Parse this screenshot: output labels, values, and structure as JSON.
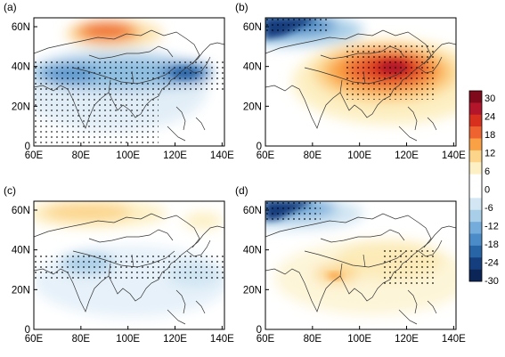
{
  "panels": [
    {
      "label": "(a)",
      "field": "a"
    },
    {
      "label": "(b)",
      "field": "b"
    },
    {
      "label": "(c)",
      "field": "c"
    },
    {
      "label": "(d)",
      "field": "d"
    }
  ],
  "x_ticks": [
    "60E",
    "80E",
    "100E",
    "120E",
    "140E"
  ],
  "y_ticks": [
    "0",
    "20N",
    "40N",
    "60N"
  ],
  "colorbar": {
    "labels": [
      "30",
      "24",
      "18",
      "12",
      "6",
      "0",
      "-6",
      "-12",
      "-18",
      "-24",
      "-30"
    ],
    "colors": [
      "#7f0a1b",
      "#b3152a",
      "#d7301f",
      "#ee6330",
      "#f9a144",
      "#fcd48a",
      "#fdf0c4",
      "#ffffff",
      "#ffffff",
      "#d3e6f3",
      "#a9cfe8",
      "#74addb",
      "#4a8bc8",
      "#2865a7",
      "#153e7e",
      "#0b2556"
    ]
  }
}
